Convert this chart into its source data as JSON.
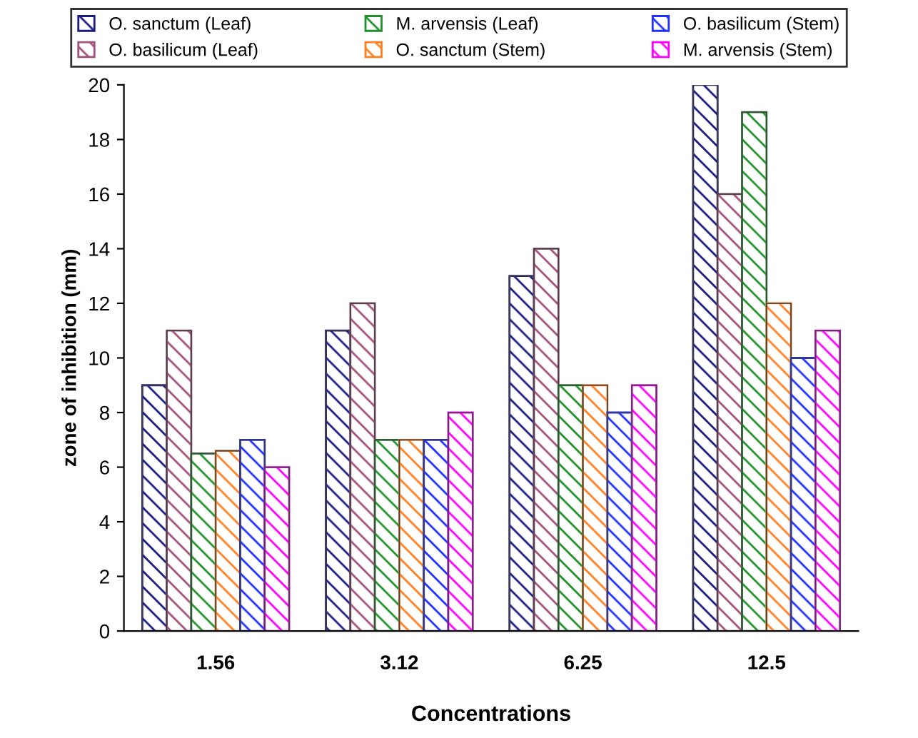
{
  "chart_data": {
    "type": "bar",
    "xlabel": "Concentrations",
    "ylabel": "zone of inhibition (mm)",
    "categories": [
      "1.56",
      "3.12",
      "6.25",
      "12.5"
    ],
    "series": [
      {
        "name": "O. sanctum (Leaf)",
        "color": "#1a1a80",
        "values": [
          9,
          11,
          13,
          20
        ]
      },
      {
        "name": "O. basilicum (Leaf)",
        "color": "#a0507a",
        "values": [
          11,
          12,
          14,
          16
        ]
      },
      {
        "name": "M. arvensis (Leaf)",
        "color": "#20902a",
        "values": [
          6.5,
          7,
          9,
          19
        ]
      },
      {
        "name": "O. sanctum (Stem)",
        "color": "#ff7f20",
        "values": [
          6.6,
          7,
          9,
          12
        ]
      },
      {
        "name": "O. basilicum (Stem)",
        "color": "#1f2fff",
        "values": [
          7,
          7,
          8,
          10
        ]
      },
      {
        "name": "M. arvensis (Stem)",
        "color": "#ff00ff",
        "values": [
          6,
          8,
          9,
          11
        ]
      }
    ],
    "ylim": [
      0,
      20
    ],
    "yticks": [
      0,
      2,
      4,
      6,
      8,
      10,
      12,
      14,
      16,
      18,
      20
    ],
    "grid": false,
    "legend": "top"
  }
}
